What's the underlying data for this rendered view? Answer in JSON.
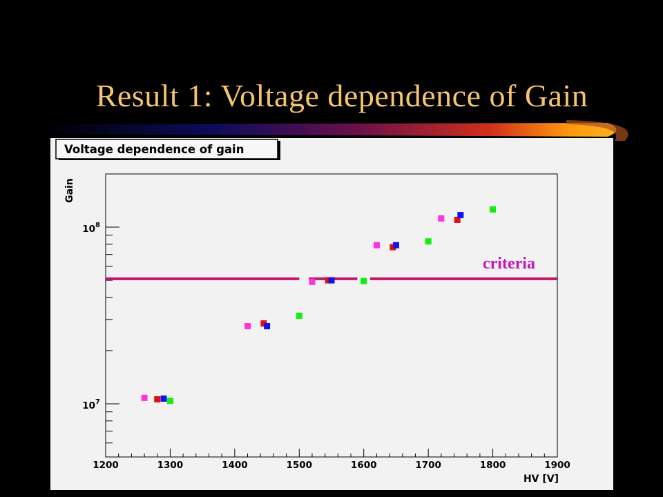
{
  "slide": {
    "title": "Result 1: Voltage dependence of Gain"
  },
  "colors": {
    "title": "#f5c46e",
    "criteria": "#c2136e",
    "criteria_text": "#c216c2"
  },
  "chart_data": {
    "type": "scatter",
    "title": "Voltage dependence of gain",
    "xlabel": "HV [V]",
    "ylabel": "Gain",
    "xlim": [
      1200,
      1900
    ],
    "ylim": [
      5000000.0,
      200000000.0
    ],
    "yscale": "log",
    "x_ticks": [
      1200,
      1300,
      1400,
      1500,
      1600,
      1700,
      1800,
      1900
    ],
    "y_ticks": [
      {
        "value": 10000000.0,
        "mantissa": "10",
        "exp": "7"
      },
      {
        "value": 100000000.0,
        "mantissa": "10",
        "exp": "8"
      }
    ],
    "series": [
      {
        "color": "#ff33dd",
        "points": [
          [
            1260,
            10800000.0
          ],
          [
            1420,
            27500000.0
          ],
          [
            1520,
            49000000.0
          ],
          [
            1620,
            79000000.0
          ],
          [
            1720,
            112000000.0
          ]
        ]
      },
      {
        "color": "#dd1111",
        "points": [
          [
            1280,
            10600000.0
          ],
          [
            1445,
            28500000.0
          ],
          [
            1545,
            50000000.0
          ],
          [
            1645,
            77000000.0
          ],
          [
            1745,
            110000000.0
          ]
        ]
      },
      {
        "color": "#1111ee",
        "points": [
          [
            1290,
            10700000.0
          ],
          [
            1450,
            27500000.0
          ],
          [
            1550,
            50000000.0
          ],
          [
            1650,
            79000000.0
          ],
          [
            1750,
            117000000.0
          ]
        ]
      },
      {
        "color": "#11ee11",
        "points": [
          [
            1300,
            10400000.0
          ],
          [
            1500,
            31500000.0
          ],
          [
            1600,
            49500000.0
          ],
          [
            1700,
            83000000.0
          ],
          [
            1800,
            126000000.0
          ]
        ]
      }
    ],
    "annotations": [
      {
        "text": "criteria",
        "y": 51000000.0
      }
    ]
  }
}
